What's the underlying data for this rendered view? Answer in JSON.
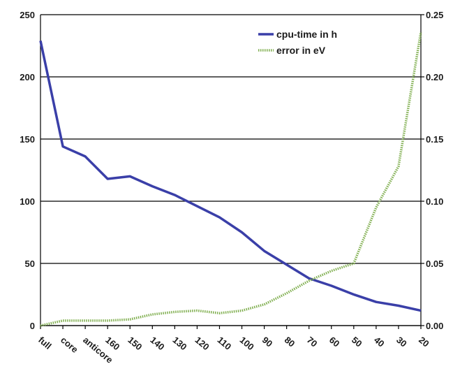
{
  "chart_data": {
    "type": "line",
    "categories": [
      "full",
      "core",
      "anticore",
      "160",
      "150",
      "140",
      "130",
      "120",
      "110",
      "100",
      "90",
      "80",
      "70",
      "60",
      "50",
      "40",
      "30",
      "20"
    ],
    "series": [
      {
        "name": "cpu-time in h",
        "axis": "left",
        "color": "#3a3fa8",
        "style": "solid",
        "values": [
          229,
          144,
          136,
          118,
          120,
          112,
          105,
          96,
          87,
          75,
          60,
          49,
          38,
          32,
          25,
          19,
          16,
          12
        ]
      },
      {
        "name": "error in eV",
        "axis": "right",
        "color": "#7fae4e",
        "style": "dotted",
        "values": [
          0.0,
          0.004,
          0.004,
          0.004,
          0.005,
          0.009,
          0.011,
          0.012,
          0.01,
          0.012,
          0.017,
          0.026,
          0.036,
          0.044,
          0.05,
          0.095,
          0.128,
          0.236
        ]
      }
    ],
    "y_left": {
      "min": 0,
      "max": 250,
      "ticks": [
        0,
        50,
        100,
        150,
        200,
        250
      ],
      "tick_labels": [
        "0",
        "50",
        "100",
        "150",
        "200",
        "250"
      ]
    },
    "y_right": {
      "min": 0,
      "max": 0.25,
      "ticks": [
        0,
        0.05,
        0.1,
        0.15,
        0.2,
        0.25
      ],
      "tick_labels": [
        "0.00",
        "0.05",
        "0.10",
        "0.15",
        "0.20",
        "0.25"
      ]
    },
    "grid": true,
    "legend_position": "top-right",
    "title": "",
    "xlabel": "",
    "ylabel": ""
  }
}
